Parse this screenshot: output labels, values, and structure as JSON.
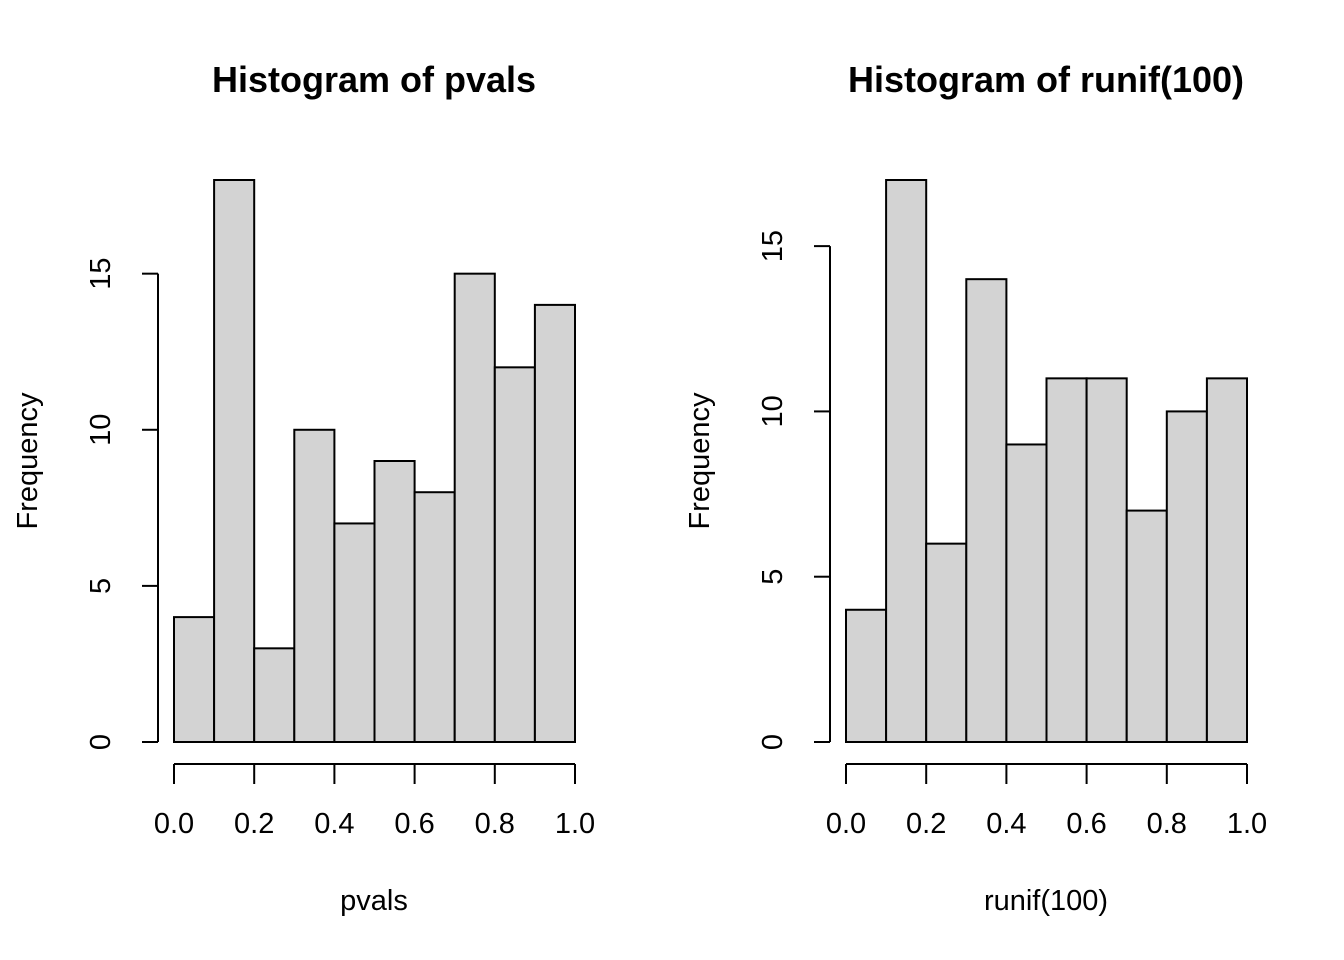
{
  "chart_data": [
    {
      "type": "bar",
      "title": "Histogram of pvals",
      "xlabel": "pvals",
      "ylabel": "Frequency",
      "bin_edges": [
        0.0,
        0.1,
        0.2,
        0.3,
        0.4,
        0.5,
        0.6,
        0.7,
        0.8,
        0.9,
        1.0
      ],
      "values": [
        4,
        18,
        3,
        10,
        7,
        9,
        8,
        15,
        12,
        14
      ],
      "xlim": [
        0,
        1
      ],
      "ylim": [
        0,
        18
      ],
      "x_ticks": [
        0.0,
        0.2,
        0.4,
        0.6,
        0.8,
        1.0
      ],
      "x_tick_labels": [
        "0.0",
        "0.2",
        "0.4",
        "0.6",
        "0.8",
        "1.0"
      ],
      "y_ticks": [
        0,
        5,
        10,
        15
      ],
      "y_tick_labels": [
        "0",
        "5",
        "10",
        "15"
      ],
      "bar_color": "#d3d3d3",
      "grid": false,
      "legend": "none"
    },
    {
      "type": "bar",
      "title": "Histogram of runif(100)",
      "xlabel": "runif(100)",
      "ylabel": "Frequency",
      "bin_edges": [
        0.0,
        0.1,
        0.2,
        0.3,
        0.4,
        0.5,
        0.6,
        0.7,
        0.8,
        0.9,
        1.0
      ],
      "values": [
        4,
        17,
        6,
        14,
        9,
        11,
        11,
        7,
        10,
        11
      ],
      "xlim": [
        0,
        1
      ],
      "ylim": [
        0,
        17
      ],
      "x_ticks": [
        0.0,
        0.2,
        0.4,
        0.6,
        0.8,
        1.0
      ],
      "x_tick_labels": [
        "0.0",
        "0.2",
        "0.4",
        "0.6",
        "0.8",
        "1.0"
      ],
      "y_ticks": [
        0,
        5,
        10,
        15
      ],
      "y_tick_labels": [
        "0",
        "5",
        "10",
        "15"
      ],
      "bar_color": "#d3d3d3",
      "grid": false,
      "legend": "none"
    }
  ]
}
